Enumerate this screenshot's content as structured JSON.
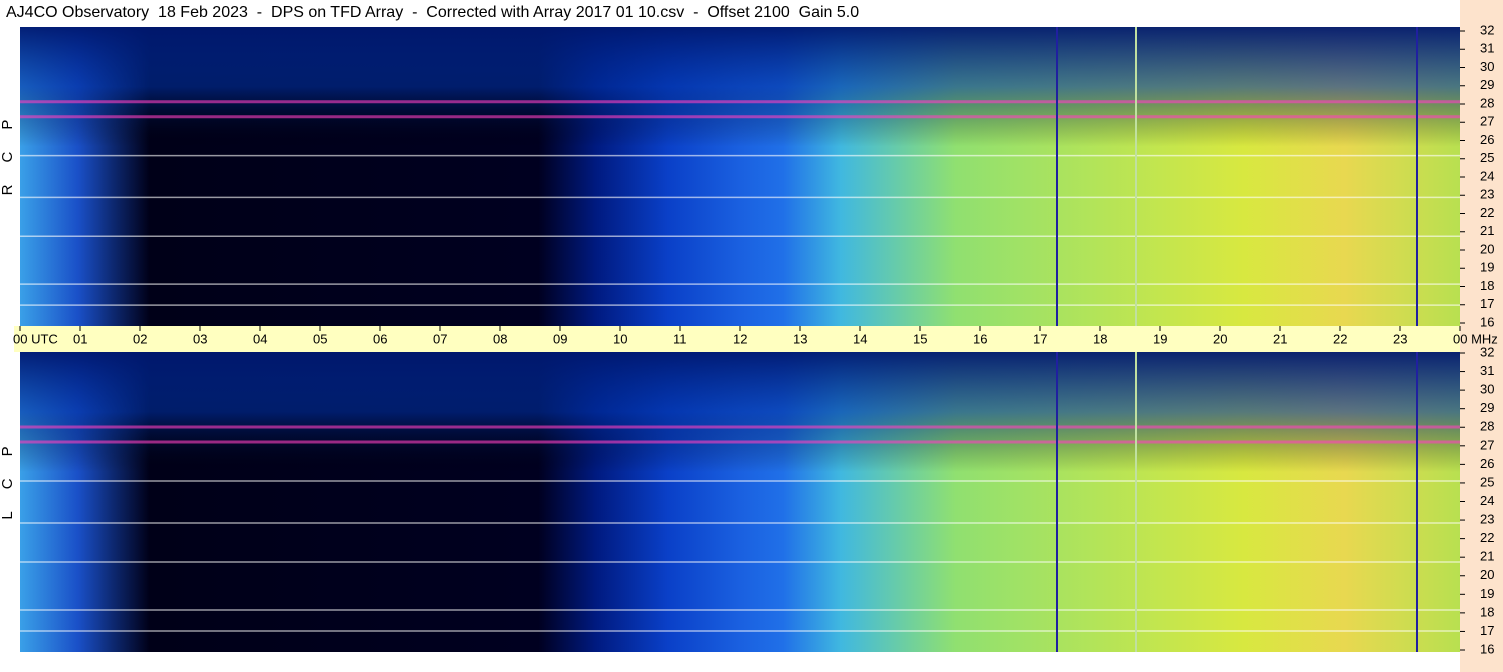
{
  "chart_data": [
    {
      "type": "spectrogram",
      "title": "AJ4CO Observatory  18 Feb 2023  -  DPS on TFD Array  -  Corrected with Array 2017 01 10.csv  -  Offset 2100  Gain 5.0",
      "ylabel": "RCP",
      "xlim": [
        0,
        24
      ],
      "xticks": [
        {
          "value": 0,
          "label": "00 UTC"
        },
        {
          "value": 1,
          "label": "01"
        },
        {
          "value": 2,
          "label": "02"
        },
        {
          "value": 3,
          "label": "03"
        },
        {
          "value": 4,
          "label": "04"
        },
        {
          "value": 5,
          "label": "05"
        },
        {
          "value": 6,
          "label": "06"
        },
        {
          "value": 7,
          "label": "07"
        },
        {
          "value": 8,
          "label": "08"
        },
        {
          "value": 9,
          "label": "09"
        },
        {
          "value": 10,
          "label": "10"
        },
        {
          "value": 11,
          "label": "11"
        },
        {
          "value": 12,
          "label": "12"
        },
        {
          "value": 13,
          "label": "13"
        },
        {
          "value": 14,
          "label": "14"
        },
        {
          "value": 15,
          "label": "15"
        },
        {
          "value": 16,
          "label": "16"
        },
        {
          "value": 17,
          "label": "17"
        },
        {
          "value": 18,
          "label": "18"
        },
        {
          "value": 19,
          "label": "19"
        },
        {
          "value": 20,
          "label": "20"
        },
        {
          "value": 21,
          "label": "21"
        },
        {
          "value": 22,
          "label": "22"
        },
        {
          "value": 23,
          "label": "23"
        },
        {
          "value": 24,
          "label": "00 MHz"
        }
      ],
      "ylim": [
        16,
        32
      ],
      "yticks": [
        16,
        17,
        18,
        19,
        20,
        21,
        22,
        23,
        24,
        25,
        26,
        27,
        28,
        29,
        30,
        31,
        32
      ]
    },
    {
      "type": "spectrogram",
      "ylabel": "LCP",
      "xlim": [
        0,
        24
      ],
      "ylim": [
        16,
        32
      ],
      "yticks": [
        16,
        17,
        18,
        19,
        20,
        21,
        22,
        23,
        24,
        25,
        26,
        27,
        28,
        29,
        30,
        31,
        32
      ]
    }
  ]
}
